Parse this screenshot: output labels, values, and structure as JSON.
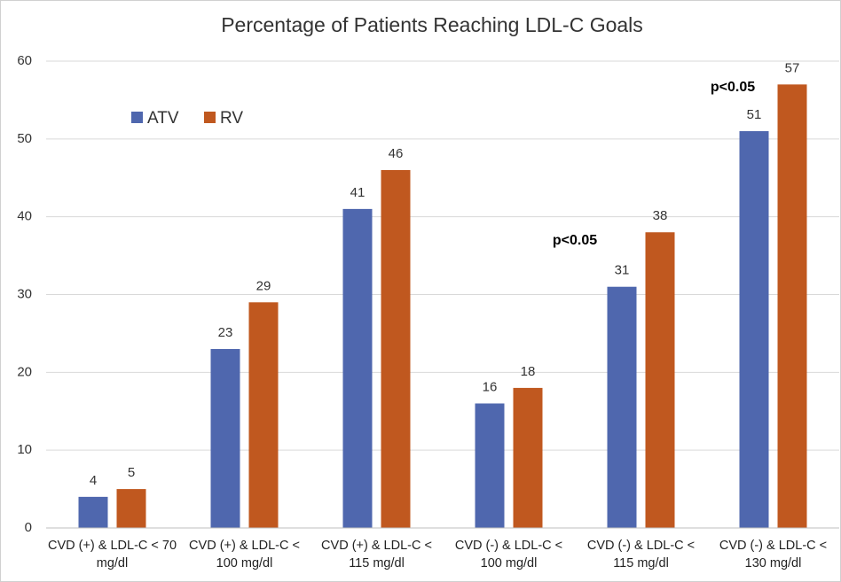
{
  "chart_data": {
    "type": "bar",
    "title": "Percentage of Patients Reaching LDL-C Goals",
    "categories": [
      "CVD (+) & LDL-C < 70 mg/dl",
      "CVD (+) & LDL-C < 100 mg/dl",
      "CVD (+) & LDL-C < 115 mg/dl",
      "CVD (-) & LDL-C < 100 mg/dl",
      "CVD (-) & LDL-C < 115 mg/dl",
      "CVD (-) & LDL-C < 130 mg/dl"
    ],
    "series": [
      {
        "name": "ATV",
        "color": "#4f67ae",
        "values": [
          4,
          23,
          41,
          16,
          31,
          51
        ]
      },
      {
        "name": "RV",
        "color": "#c0581f",
        "values": [
          5,
          29,
          46,
          18,
          38,
          57
        ]
      }
    ],
    "annotations": [
      "p<0.05",
      "p<0.05"
    ],
    "ylim": [
      0,
      60
    ],
    "yticks": [
      0,
      10,
      20,
      30,
      40,
      50,
      60
    ],
    "grid": true,
    "legend": "top-left"
  }
}
